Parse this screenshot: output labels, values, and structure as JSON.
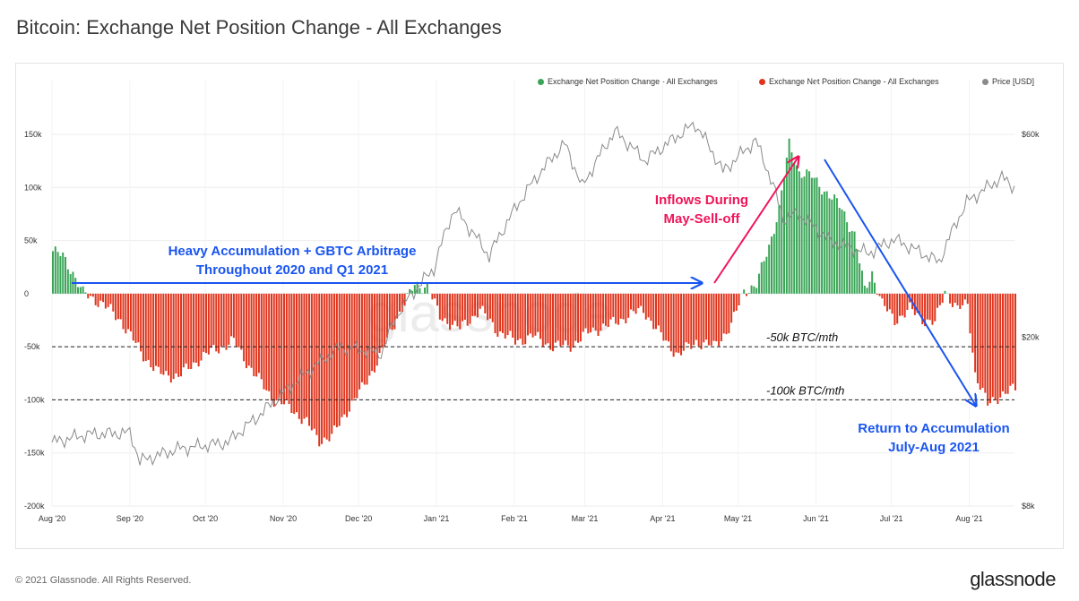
{
  "title": "Bitcoin: Exchange Net Position Change - All Exchanges",
  "footer": {
    "copyright": "© 2021 Glassnode. All Rights Reserved.",
    "brand": "glassnode"
  },
  "legend": [
    {
      "label": "Exchange Net Position Change - All Exchanges",
      "color": "#3aa557"
    },
    {
      "label": "Exchange Net Position Change - All Exchanges",
      "color": "#e0341c"
    },
    {
      "label": "Price [USD]",
      "color": "#8a8a8a"
    }
  ],
  "watermark": "glassnode",
  "chart_data": {
    "type": "bar",
    "x_start": "2020-08-01",
    "x_end": "2021-08-19",
    "x_ticks": [
      "Aug '20",
      "Sep '20",
      "Oct '20",
      "Nov '20",
      "Dec '20",
      "Jan '21",
      "Feb '21",
      "Mar '21",
      "Apr '21",
      "May '21",
      "Jun '21",
      "Jul '21",
      "Aug '21"
    ],
    "y_ticks": [
      "150k",
      "100k",
      "50k",
      "0",
      "-50k",
      "-100k",
      "-150k",
      "-200k"
    ],
    "ylim": [
      -200000,
      150000
    ],
    "y2_ticks": [
      "$60k",
      "$20k",
      "$8k"
    ],
    "y2_scale": "log",
    "positive_color": "#3aa557",
    "negative_color": "#e0341c",
    "price_color": "#8a8a8a",
    "net_position_change": [
      [
        "2020-08-01",
        40000
      ],
      [
        "2020-08-05",
        35000
      ],
      [
        "2020-08-09",
        20000
      ],
      [
        "2020-08-13",
        0
      ],
      [
        "2020-08-20",
        -8000
      ],
      [
        "2020-08-28",
        -25000
      ],
      [
        "2020-09-05",
        -55000
      ],
      [
        "2020-09-12",
        -75000
      ],
      [
        "2020-09-20",
        -78000
      ],
      [
        "2020-09-28",
        -62000
      ],
      [
        "2020-10-05",
        -52000
      ],
      [
        "2020-10-12",
        -45000
      ],
      [
        "2020-10-20",
        -75000
      ],
      [
        "2020-10-28",
        -100000
      ],
      [
        "2020-11-04",
        -108000
      ],
      [
        "2020-11-10",
        -122000
      ],
      [
        "2020-11-15",
        -138000
      ],
      [
        "2020-11-20",
        -135000
      ],
      [
        "2020-11-26",
        -110000
      ],
      [
        "2020-12-02",
        -90000
      ],
      [
        "2020-12-09",
        -60000
      ],
      [
        "2020-12-16",
        -22000
      ],
      [
        "2020-12-20",
        -5000
      ],
      [
        "2020-12-23",
        8000
      ],
      [
        "2020-12-28",
        7000
      ],
      [
        "2021-01-02",
        -22000
      ],
      [
        "2021-01-10",
        -33000
      ],
      [
        "2021-01-18",
        -15000
      ],
      [
        "2021-01-25",
        -35000
      ],
      [
        "2021-02-01",
        -45000
      ],
      [
        "2021-02-08",
        -40000
      ],
      [
        "2021-02-16",
        -50000
      ],
      [
        "2021-02-24",
        -48000
      ],
      [
        "2021-03-03",
        -35000
      ],
      [
        "2021-03-10",
        -30000
      ],
      [
        "2021-03-17",
        -22000
      ],
      [
        "2021-03-24",
        -15000
      ],
      [
        "2021-03-31",
        -40000
      ],
      [
        "2021-04-07",
        -58000
      ],
      [
        "2021-04-14",
        -45000
      ],
      [
        "2021-04-21",
        -50000
      ],
      [
        "2021-04-28",
        -30000
      ],
      [
        "2021-05-03",
        3000
      ],
      [
        "2021-05-08",
        8000
      ],
      [
        "2021-05-13",
        45000
      ],
      [
        "2021-05-17",
        80000
      ],
      [
        "2021-05-21",
        140000
      ],
      [
        "2021-05-25",
        115000
      ],
      [
        "2021-05-30",
        110000
      ],
      [
        "2021-06-05",
        95000
      ],
      [
        "2021-06-11",
        80000
      ],
      [
        "2021-06-16",
        55000
      ],
      [
        "2021-06-20",
        3000
      ],
      [
        "2021-06-23",
        20000
      ],
      [
        "2021-06-27",
        -10000
      ],
      [
        "2021-07-02",
        -25000
      ],
      [
        "2021-07-08",
        -15000
      ],
      [
        "2021-07-14",
        -25000
      ],
      [
        "2021-07-18",
        -28000
      ],
      [
        "2021-07-22",
        3000
      ],
      [
        "2021-07-27",
        -15000
      ],
      [
        "2021-07-31",
        -10000
      ],
      [
        "2021-08-03",
        -75000
      ],
      [
        "2021-08-08",
        -105000
      ],
      [
        "2021-08-13",
        -95000
      ],
      [
        "2021-08-19",
        -90000
      ]
    ],
    "price_usd": [
      [
        "2020-08-01",
        11300
      ],
      [
        "2020-08-15",
        11800
      ],
      [
        "2020-09-01",
        11900
      ],
      [
        "2020-09-05",
        10200
      ],
      [
        "2020-09-20",
        10900
      ],
      [
        "2020-10-10",
        11300
      ],
      [
        "2020-10-22",
        13000
      ],
      [
        "2020-11-05",
        15500
      ],
      [
        "2020-11-24",
        19000
      ],
      [
        "2020-12-10",
        18300
      ],
      [
        "2020-12-17",
        23000
      ],
      [
        "2020-12-31",
        29000
      ],
      [
        "2021-01-08",
        40000
      ],
      [
        "2021-01-22",
        31000
      ],
      [
        "2021-02-08",
        46000
      ],
      [
        "2021-02-21",
        57000
      ],
      [
        "2021-02-28",
        45000
      ],
      [
        "2021-03-13",
        61000
      ],
      [
        "2021-03-25",
        52000
      ],
      [
        "2021-04-14",
        63500
      ],
      [
        "2021-04-25",
        49000
      ],
      [
        "2021-05-08",
        58000
      ],
      [
        "2021-05-19",
        38000
      ],
      [
        "2021-05-25",
        39000
      ],
      [
        "2021-06-07",
        33500
      ],
      [
        "2021-06-22",
        31500
      ],
      [
        "2021-07-02",
        34000
      ],
      [
        "2021-07-20",
        30000
      ],
      [
        "2021-07-31",
        41500
      ],
      [
        "2021-08-14",
        47500
      ],
      [
        "2021-08-19",
        45000
      ]
    ],
    "reference_lines": [
      {
        "value": -50000,
        "label": "-50k BTC/mth"
      },
      {
        "value": -100000,
        "label": "-100k BTC/mth"
      }
    ],
    "annotations": {
      "accumulation": [
        "Heavy Accumulation + GBTC Arbitrage",
        "Throughout 2020 and Q1 2021"
      ],
      "inflows": [
        "Inflows During",
        "May-Sell-off"
      ],
      "return": [
        "Return to Accumulation",
        "July-Aug 2021"
      ]
    }
  }
}
